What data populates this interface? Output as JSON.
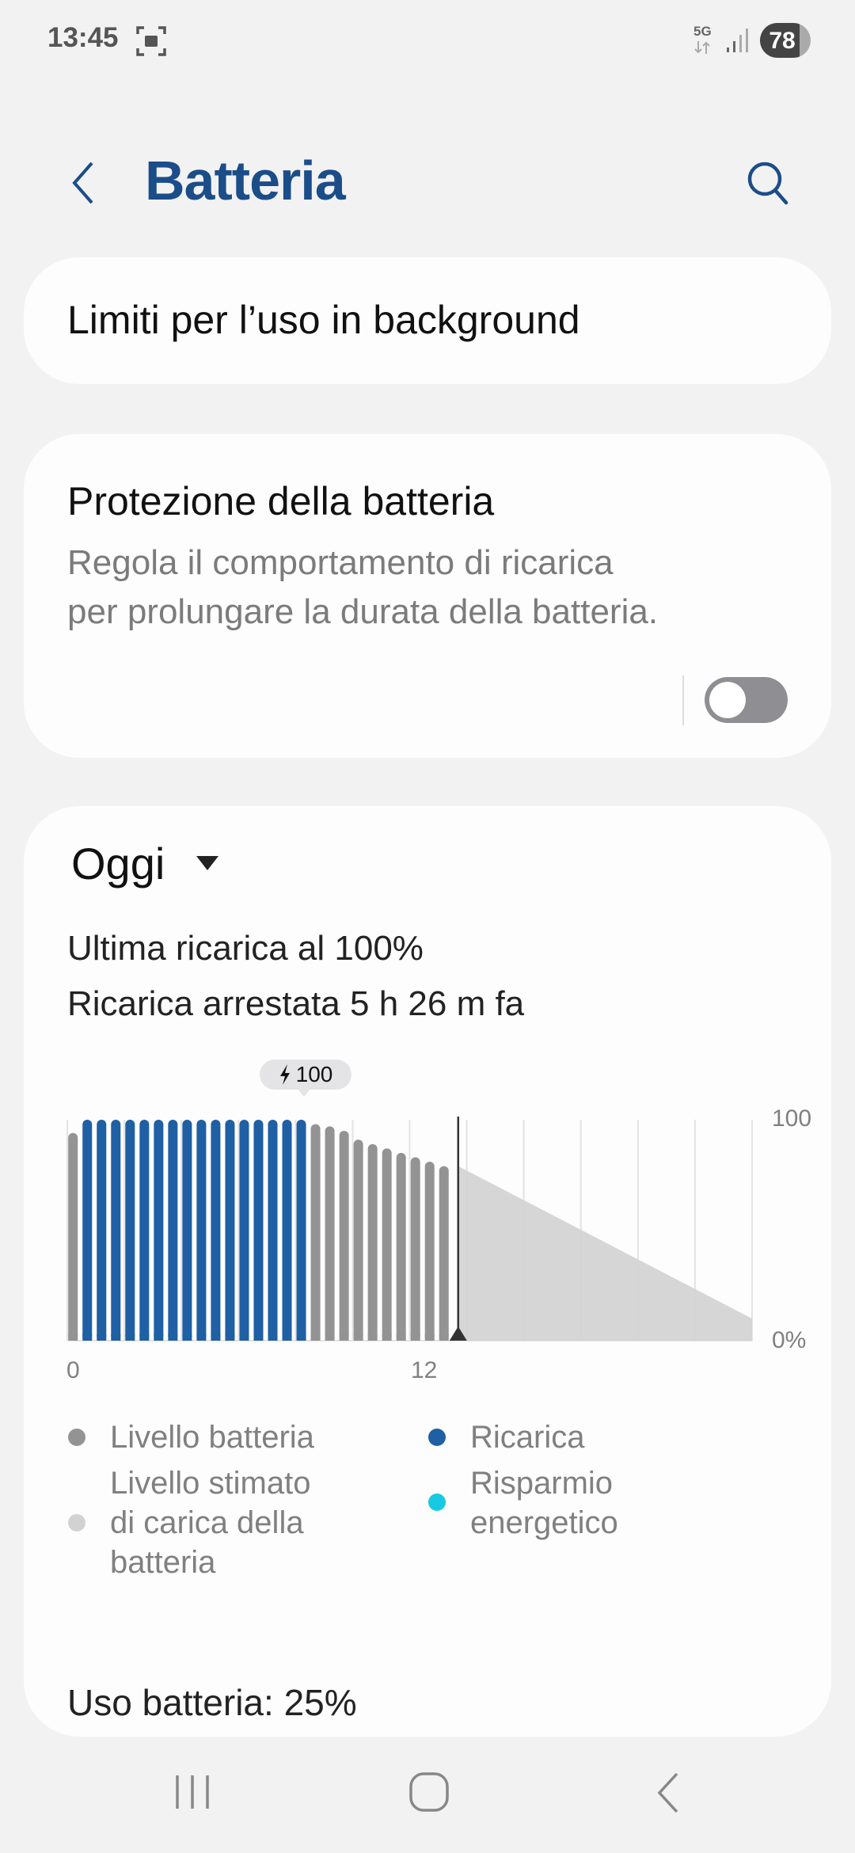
{
  "status_bar": {
    "time": "13:45",
    "network": "5G",
    "battery": "78"
  },
  "header": {
    "title": "Batteria",
    "back_icon": "chevron-left-icon",
    "search_icon": "search-icon"
  },
  "background_limits": {
    "label": "Limiti per l’uso in background"
  },
  "battery_protection": {
    "title": "Protezione della batteria",
    "description_line1": "Regola il comportamento di ricarica",
    "description_line2": "per prolungare la durata della batteria.",
    "enabled": false
  },
  "usage": {
    "period": "Oggi",
    "last_charge": "Ultima ricarica al 100%",
    "charge_stopped": "Ricarica arrestata 5 h 26 m fa",
    "battery_usage": "Uso batteria: 25%"
  },
  "colors": {
    "battery_level": "#939393",
    "charging": "#1f5fa4",
    "estimated": "#d2d2d2",
    "power_saving": "#17c9e3",
    "title": "#1b4d89"
  },
  "chart_data": {
    "type": "bar",
    "xlabel": "",
    "ylabel": "",
    "x_ticks": [
      "0",
      "12"
    ],
    "y_ticks": [
      "100",
      "0%"
    ],
    "ylim": [
      0,
      100
    ],
    "xlim": [
      0,
      24
    ],
    "tooltip": "100",
    "bars_x_hours": [
      0.2,
      0.7,
      1.2,
      1.7,
      2.2,
      2.7,
      3.2,
      3.7,
      4.2,
      4.7,
      5.2,
      5.7,
      6.2,
      6.7,
      7.2,
      7.7,
      8.2,
      8.7,
      9.2,
      9.7,
      10.2,
      10.7,
      11.2,
      11.7,
      12.2,
      12.7,
      13.2
    ],
    "values": [
      94,
      100,
      100,
      100,
      100,
      100,
      100,
      100,
      100,
      100,
      100,
      100,
      100,
      100,
      100,
      100,
      100,
      98,
      97,
      95,
      91,
      89,
      87,
      85,
      83,
      81,
      79
    ],
    "charging": [
      false,
      true,
      true,
      true,
      true,
      true,
      true,
      true,
      true,
      true,
      true,
      true,
      true,
      true,
      true,
      true,
      true,
      false,
      false,
      false,
      false,
      false,
      false,
      false,
      false,
      false,
      false
    ],
    "current_time_hours": 13.7,
    "estimated": [
      {
        "x": 13.7,
        "y": 79
      },
      {
        "x": 24,
        "y": 10
      }
    ],
    "grid": true,
    "legend": [
      {
        "label": "Livello batteria",
        "color": "#939393"
      },
      {
        "label": "Ricarica",
        "color": "#1f5fa4"
      },
      {
        "label_lines": [
          "Livello stimato",
          "di carica della",
          "batteria"
        ],
        "color": "#d2d2d2"
      },
      {
        "label_lines": [
          "Risparmio",
          "energetico"
        ],
        "color": "#17c9e3"
      }
    ]
  }
}
